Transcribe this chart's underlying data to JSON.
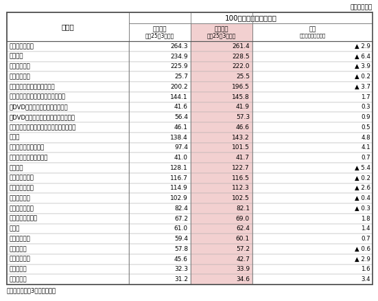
{
  "title_unit": "（単位：台）",
  "header1": "100世帯あたり保有数量",
  "col1_header_line1": "品　目",
  "col2_header_line1": "訪問調査",
  "col2_header_line2": "平成25年3月調査",
  "col3_header_line1": "試験調査",
  "col3_header_line2": "平成25年3月調査",
  "col4_header_line1": "差分",
  "col4_header_line2": "試験調査－訪問調査",
  "rows": [
    {
      "item": "ルームエアコン",
      "indent": 0,
      "v1": "264.3",
      "v2": "261.4",
      "diff": "▲ 2.9",
      "diff_neg": true
    },
    {
      "item": "携帯電話",
      "indent": 0,
      "v1": "234.9",
      "v2": "228.5",
      "diff": "▲ 6.4",
      "diff_neg": true
    },
    {
      "item": "カラーテレビ",
      "indent": 0,
      "v1": "225.9",
      "v2": "222.0",
      "diff": "▲ 3.9",
      "diff_neg": true
    },
    {
      "item": "　ブラウン管",
      "indent": 0,
      "v1": "25.7",
      "v2": "25.5",
      "diff": "▲ 0.2",
      "diff_neg": true
    },
    {
      "item": "　薄型（液晶、プラズマ等）",
      "indent": 0,
      "v1": "200.2",
      "v2": "196.5",
      "diff": "▲ 3.7",
      "diff_neg": true
    },
    {
      "item": "光ディスクプレーヤー・レコーダー",
      "indent": 0,
      "v1": "144.1",
      "v2": "145.8",
      "diff": "1.7",
      "diff_neg": false
    },
    {
      "item": "　DVDプレーヤー（再生専用機）",
      "indent": 0,
      "v1": "41.6",
      "v2": "41.9",
      "diff": "0.3",
      "diff_neg": false
    },
    {
      "item": "　DVDレコーダー（再生録画兼用機）",
      "indent": 0,
      "v1": "56.4",
      "v2": "57.3",
      "diff": "0.9",
      "diff_neg": false
    },
    {
      "item": "　ブルーレイ（プレーヤー・レコーダー）",
      "indent": 0,
      "v1": "46.1",
      "v2": "46.6",
      "diff": "0.5",
      "diff_neg": false
    },
    {
      "item": "乗用車",
      "indent": 0,
      "v1": "138.4",
      "v2": "143.2",
      "diff": "4.8",
      "diff_neg": false
    },
    {
      "item": "　新車で購入したもの",
      "indent": 0,
      "v1": "97.4",
      "v2": "101.5",
      "diff": "4.1",
      "diff_neg": false
    },
    {
      "item": "　中古車で購入したもの",
      "indent": 0,
      "v1": "41.0",
      "v2": "41.7",
      "diff": "0.7",
      "diff_neg": false
    },
    {
      "item": "パソコン",
      "indent": 0,
      "v1": "128.1",
      "v2": "122.7",
      "diff": "▲ 5.4",
      "diff_neg": true
    },
    {
      "item": "デジタルカメラ",
      "indent": 0,
      "v1": "116.7",
      "v2": "116.5",
      "diff": "▲ 0.2",
      "diff_neg": true
    },
    {
      "item": "ファンヒーター",
      "indent": 0,
      "v1": "114.9",
      "v2": "112.3",
      "diff": "▲ 2.6",
      "diff_neg": true
    },
    {
      "item": "温水洗浄便座",
      "indent": 0,
      "v1": "102.9",
      "v2": "102.5",
      "diff": "▲ 0.4",
      "diff_neg": true
    },
    {
      "item": "洗髪洗面化粧台",
      "indent": 0,
      "v1": "82.4",
      "v2": "82.1",
      "diff": "▲ 0.3",
      "diff_neg": true
    },
    {
      "item": "システムキッチン",
      "indent": 0,
      "v1": "67.2",
      "v2": "69.0",
      "diff": "1.8",
      "diff_neg": false
    },
    {
      "item": "温水器",
      "indent": 0,
      "v1": "61.0",
      "v2": "62.4",
      "diff": "1.4",
      "diff_neg": false
    },
    {
      "item": "ファクシミリ",
      "indent": 0,
      "v1": "59.4",
      "v2": "60.1",
      "diff": "0.7",
      "diff_neg": false
    },
    {
      "item": "空気清浄機",
      "indent": 0,
      "v1": "57.8",
      "v2": "57.2",
      "diff": "▲ 0.6",
      "diff_neg": true
    },
    {
      "item": "ビデオカメラ",
      "indent": 0,
      "v1": "45.6",
      "v2": "42.7",
      "diff": "▲ 2.9",
      "diff_neg": true
    },
    {
      "item": "衣類乾燥機",
      "indent": 0,
      "v1": "32.3",
      "v2": "33.9",
      "diff": "1.6",
      "diff_neg": false
    },
    {
      "item": "食器洗い機",
      "indent": 0,
      "v1": "31.2",
      "v2": "34.6",
      "diff": "3.4",
      "diff_neg": false
    }
  ],
  "footnote": "（注）年度末（3月末）現在。",
  "bg_pink": "#f2d0d0",
  "border_outer": "#555555",
  "border_inner": "#aaaaaa"
}
